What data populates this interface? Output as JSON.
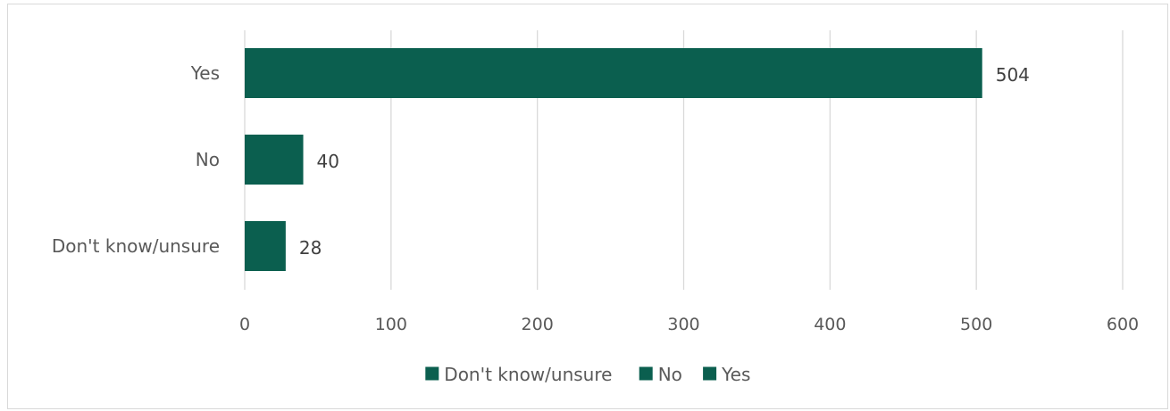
{
  "chart_data": {
    "type": "bar",
    "orientation": "horizontal",
    "categories": [
      "Yes",
      "No",
      "Don't know/unsure"
    ],
    "values": [
      504,
      40,
      28
    ],
    "data_labels": [
      "504",
      "40",
      "28"
    ],
    "title": "",
    "xlabel": "",
    "ylabel": "",
    "xlim": [
      0,
      600
    ],
    "x_ticks": [
      0,
      100,
      200,
      300,
      400,
      500,
      600
    ],
    "x_tick_labels": [
      "0",
      "100",
      "200",
      "300",
      "400",
      "500",
      "600"
    ],
    "grid": "vertical",
    "legend": {
      "placement": "bottom",
      "entries": [
        "Don't know/unsure",
        "No",
        "Yes"
      ]
    },
    "colors": {
      "bar": "#0b5f4f",
      "grid": "#d9d9d9",
      "text": "#595959"
    }
  }
}
